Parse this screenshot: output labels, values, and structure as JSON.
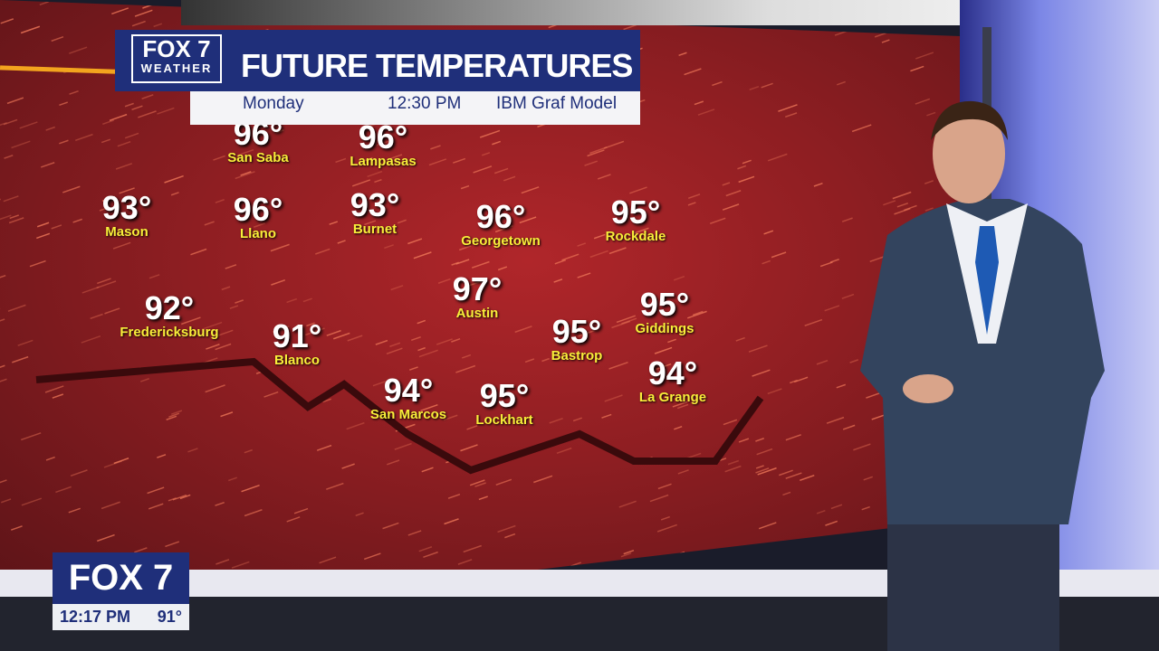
{
  "header": {
    "logo_main": "FOX 7",
    "logo_sub": "WEATHER",
    "title": "FUTURE TEMPERATURES",
    "day": "Monday",
    "time": "12:30 PM",
    "model": "IBM Graf Model"
  },
  "cities": [
    {
      "name": "San Saba",
      "temp": "96°"
    },
    {
      "name": "Lampasas",
      "temp": "96°"
    },
    {
      "name": "Mason",
      "temp": "93°"
    },
    {
      "name": "Llano",
      "temp": "96°"
    },
    {
      "name": "Burnet",
      "temp": "93°"
    },
    {
      "name": "Georgetown",
      "temp": "96°"
    },
    {
      "name": "Rockdale",
      "temp": "95°"
    },
    {
      "name": "Fredericksburg",
      "temp": "92°"
    },
    {
      "name": "Blanco",
      "temp": "91°"
    },
    {
      "name": "Austin",
      "temp": "97°"
    },
    {
      "name": "Bastrop",
      "temp": "95°"
    },
    {
      "name": "Giddings",
      "temp": "95°"
    },
    {
      "name": "San Marcos",
      "temp": "94°"
    },
    {
      "name": "Lockhart",
      "temp": "95°"
    },
    {
      "name": "La Grange",
      "temp": "94°"
    }
  ],
  "bug": {
    "station": "FOX 7",
    "time": "12:17 PM",
    "temp": "91°"
  },
  "colors": {
    "map_red": "#a0222a",
    "brand_blue": "#1f2f7a",
    "label_yellow": "#f8ee3a",
    "accent_orange": "#f3a41e"
  }
}
